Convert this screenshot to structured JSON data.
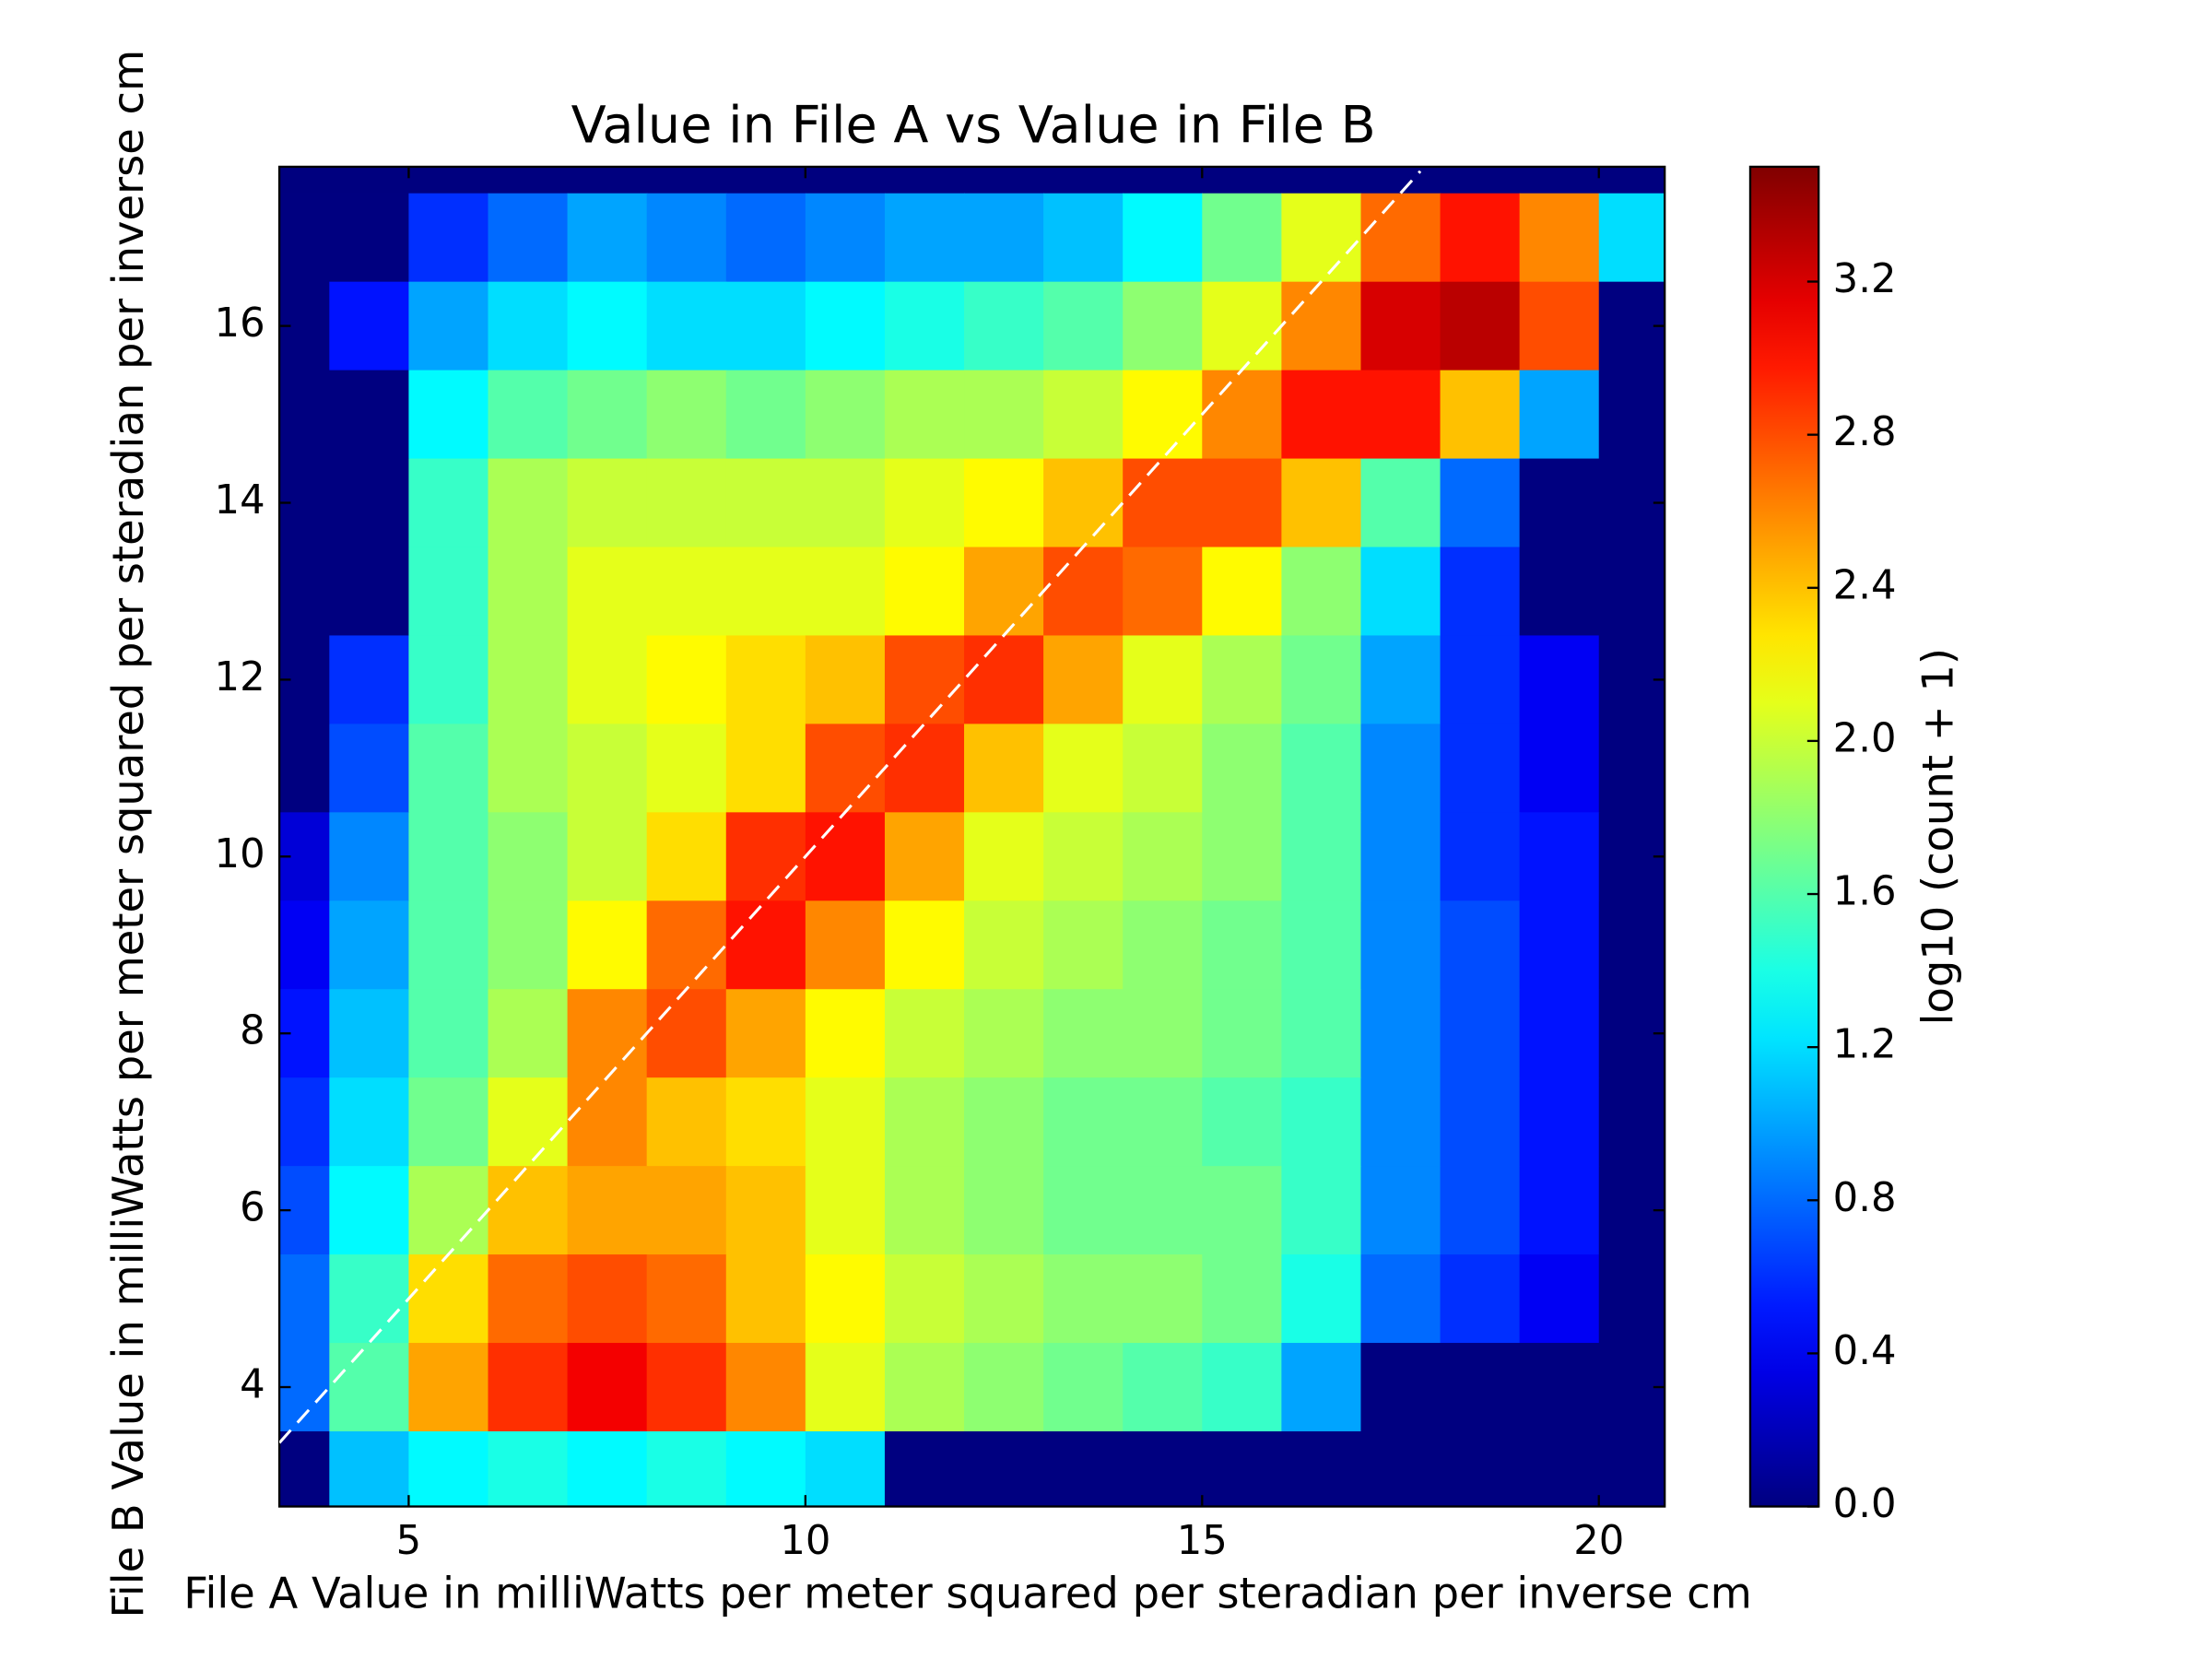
{
  "chart_data": {
    "type": "hexbin",
    "title": "Value in File A vs Value in File B",
    "x_label": "File A Value in milliWatts per meter squared per steradian per inverse cm",
    "y_label": "File B Value in milliWatts per meter squared per steradian per inverse cm",
    "xlim": [
      3.37,
      20.83
    ],
    "ylim": [
      2.65,
      17.8
    ],
    "xticks": [
      5,
      10,
      15,
      20
    ],
    "yticks": [
      4,
      6,
      8,
      10,
      12,
      14,
      16
    ],
    "colormap": "jet",
    "x": [
      3.5,
      4.5,
      5.5,
      6.5,
      7.5,
      8.5,
      9.5,
      10.5,
      11.5,
      12.5,
      13.5,
      14.5,
      15.5,
      16.5,
      17.5,
      18.5,
      19.5,
      20.5
    ],
    "y": [
      17,
      16,
      15,
      14,
      13,
      12,
      11,
      10,
      9,
      8,
      7,
      6,
      5,
      4,
      3
    ],
    "values": [
      [
        0,
        0,
        0.6,
        0.8,
        1.0,
        0.9,
        0.8,
        0.9,
        1.0,
        1.0,
        1.1,
        1.3,
        1.7,
        2.1,
        2.7,
        3.0,
        2.6,
        1.2
      ],
      [
        0,
        0.5,
        1.0,
        1.2,
        1.3,
        1.2,
        1.2,
        1.3,
        1.4,
        1.5,
        1.6,
        1.8,
        2.1,
        2.6,
        3.2,
        3.3,
        2.8,
        0
      ],
      [
        0,
        0,
        1.3,
        1.6,
        1.7,
        1.8,
        1.7,
        1.8,
        1.9,
        1.9,
        2.0,
        2.2,
        2.6,
        3.0,
        3.0,
        2.4,
        1.0,
        0
      ],
      [
        0,
        0,
        1.5,
        1.9,
        2.0,
        2.0,
        2.0,
        2.0,
        2.1,
        2.2,
        2.4,
        2.8,
        2.8,
        2.4,
        1.6,
        0.8,
        0,
        0
      ],
      [
        0,
        0,
        1.5,
        1.9,
        2.1,
        2.1,
        2.1,
        2.1,
        2.2,
        2.5,
        2.8,
        2.7,
        2.2,
        1.8,
        1.2,
        0.6,
        0,
        0
      ],
      [
        0,
        0.6,
        1.5,
        1.9,
        2.1,
        2.2,
        2.3,
        2.4,
        2.8,
        2.9,
        2.5,
        2.1,
        1.9,
        1.7,
        1.0,
        0.6,
        0.4,
        0
      ],
      [
        0,
        0.7,
        1.6,
        1.9,
        2.0,
        2.1,
        2.3,
        2.8,
        2.9,
        2.4,
        2.1,
        2.0,
        1.8,
        1.6,
        0.9,
        0.6,
        0.4,
        0
      ],
      [
        0.3,
        0.9,
        1.6,
        1.8,
        2.0,
        2.3,
        2.9,
        3.0,
        2.5,
        2.1,
        2.0,
        1.9,
        1.8,
        1.6,
        0.9,
        0.6,
        0.5,
        0
      ],
      [
        0.4,
        1.0,
        1.6,
        1.8,
        2.2,
        2.7,
        3.0,
        2.6,
        2.2,
        2.0,
        1.9,
        1.8,
        1.7,
        1.6,
        0.9,
        0.7,
        0.5,
        0
      ],
      [
        0.5,
        1.1,
        1.6,
        1.9,
        2.6,
        2.8,
        2.5,
        2.2,
        2.0,
        1.9,
        1.8,
        1.8,
        1.7,
        1.6,
        0.9,
        0.7,
        0.5,
        0
      ],
      [
        0.6,
        1.2,
        1.7,
        2.1,
        2.6,
        2.4,
        2.3,
        2.1,
        1.9,
        1.8,
        1.7,
        1.7,
        1.6,
        1.5,
        0.9,
        0.7,
        0.5,
        0
      ],
      [
        0.7,
        1.3,
        1.9,
        2.4,
        2.5,
        2.5,
        2.4,
        2.1,
        1.9,
        1.8,
        1.7,
        1.7,
        1.7,
        1.5,
        0.9,
        0.7,
        0.5,
        0
      ],
      [
        0.8,
        1.5,
        2.3,
        2.7,
        2.8,
        2.7,
        2.4,
        2.2,
        2.0,
        1.9,
        1.8,
        1.8,
        1.7,
        1.4,
        0.8,
        0.6,
        0.4,
        0
      ],
      [
        0.8,
        1.6,
        2.5,
        2.9,
        3.1,
        2.9,
        2.6,
        2.1,
        1.9,
        1.8,
        1.7,
        1.6,
        1.5,
        1.0,
        0,
        0,
        0,
        0
      ],
      [
        0,
        1.1,
        1.3,
        1.4,
        1.3,
        1.4,
        1.3,
        1.2,
        0,
        0,
        0,
        0,
        0,
        0,
        0,
        0,
        0,
        0
      ]
    ],
    "reference_line": {
      "x": [
        3.37,
        17.75
      ],
      "y": [
        3.37,
        17.75
      ],
      "color": "#ffffff",
      "dashed": true
    },
    "colorbar": {
      "label": "log10 (count + 1)",
      "lim": [
        0,
        3.5
      ],
      "ticks": [
        {
          "value": 0,
          "label": "0.0"
        },
        0.4,
        0.8,
        1.2,
        1.6,
        {
          "value": 2,
          "label": "2.0"
        },
        2.4,
        2.8,
        3.2
      ]
    }
  }
}
